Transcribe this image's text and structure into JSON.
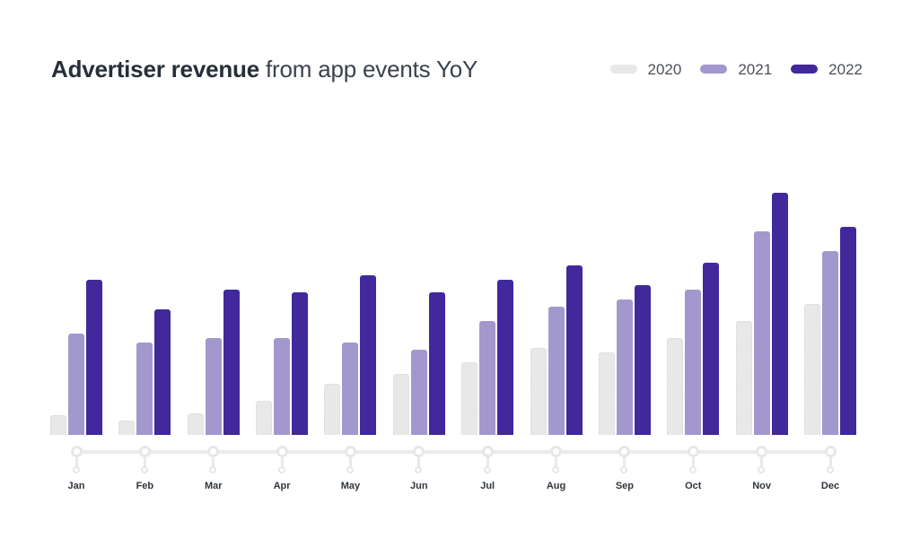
{
  "header": {
    "title_bold": "Advertiser revenue",
    "title_rest": "from app events YoY"
  },
  "legend": {
    "position": "top-right",
    "items": [
      {
        "label": "2020",
        "color": "#e8e8e8"
      },
      {
        "label": "2021",
        "color": "#a398cd"
      },
      {
        "label": "2022",
        "color": "#41289b"
      }
    ]
  },
  "colors": {
    "background": "#ffffff",
    "title": "#272f3a",
    "legend_text": "#4b5058",
    "axis": "#ebebeb",
    "month_label": "#30353d",
    "series_2020": "#e8e8e8",
    "series_2021": "#a398cd",
    "series_2022": "#41289b"
  },
  "chart_data": {
    "type": "bar",
    "title": "Advertiser revenue from app events YoY",
    "categories": [
      "Jan",
      "Feb",
      "Mar",
      "Apr",
      "May",
      "Jun",
      "Jul",
      "Aug",
      "Sep",
      "Oct",
      "Nov",
      "Dec"
    ],
    "series": [
      {
        "name": "2020",
        "color": "#e8e8e8",
        "values": [
          8,
          6,
          9,
          14,
          21,
          25,
          30,
          36,
          34,
          40,
          47,
          54
        ]
      },
      {
        "name": "2021",
        "color": "#a398cd",
        "values": [
          42,
          38,
          40,
          40,
          38,
          35,
          47,
          53,
          56,
          60,
          84,
          76
        ]
      },
      {
        "name": "2022",
        "color": "#41289b",
        "values": [
          64,
          52,
          60,
          59,
          66,
          59,
          64,
          70,
          62,
          71,
          100,
          86
        ]
      }
    ],
    "xlabel": "",
    "ylabel": "",
    "ylim": [
      0,
      100
    ],
    "value_units": "relative units (no y-axis shown in graphic)",
    "grid": false,
    "legend_position": "top-right",
    "axis_style": "timeline with ring nodes per month"
  }
}
